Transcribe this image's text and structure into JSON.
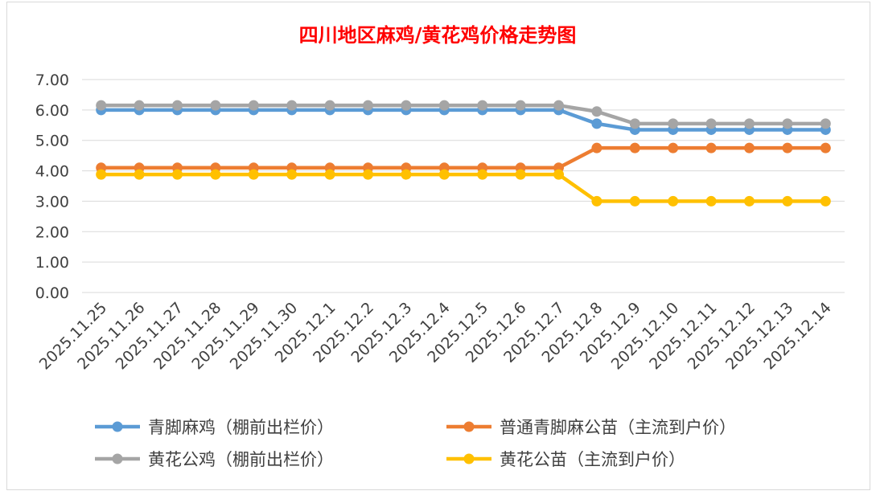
{
  "chart_data": {
    "type": "line",
    "title": "四川地区麻鸡/黄花鸡价格走势图",
    "xlabel": "",
    "ylabel": "",
    "ylim": [
      0,
      7
    ],
    "yticks": [
      "0.00",
      "1.00",
      "2.00",
      "3.00",
      "4.00",
      "5.00",
      "6.00",
      "7.00"
    ],
    "grid": true,
    "legend_position": "bottom",
    "categories": [
      "2025.11.25",
      "2025.11.26",
      "2025.11.27",
      "2025.11.28",
      "2025.11.29",
      "2025.11.30",
      "2025.12.1",
      "2025.12.2",
      "2025.12.3",
      "2025.12.4",
      "2025.12.5",
      "2025.12.6",
      "2025.12.7",
      "2025.12.8",
      "2025.12.9",
      "2025.12.10",
      "2025.12.11",
      "2025.12.12",
      "2025.12.13",
      "2025.12.14"
    ],
    "series": [
      {
        "name": "青脚麻鸡（棚前出栏价）",
        "color": "#5b9bd5",
        "values": [
          6.0,
          6.0,
          6.0,
          6.0,
          6.0,
          6.0,
          6.0,
          6.0,
          6.0,
          6.0,
          6.0,
          6.0,
          6.0,
          5.55,
          5.35,
          5.35,
          5.35,
          5.35,
          5.35,
          5.35
        ]
      },
      {
        "name": "普通青脚麻公苗（主流到户价）",
        "color": "#ed7d31",
        "values": [
          4.1,
          4.1,
          4.1,
          4.1,
          4.1,
          4.1,
          4.1,
          4.1,
          4.1,
          4.1,
          4.1,
          4.1,
          4.1,
          4.75,
          4.75,
          4.75,
          4.75,
          4.75,
          4.75,
          4.75
        ]
      },
      {
        "name": "黄花公鸡（棚前出栏价）",
        "color": "#a5a5a5",
        "values": [
          6.15,
          6.15,
          6.15,
          6.15,
          6.15,
          6.15,
          6.15,
          6.15,
          6.15,
          6.15,
          6.15,
          6.15,
          6.15,
          5.95,
          5.55,
          5.55,
          5.55,
          5.55,
          5.55,
          5.55
        ]
      },
      {
        "name": "黄花公苗（主流到户价）",
        "color": "#ffc000",
        "values": [
          3.88,
          3.88,
          3.88,
          3.88,
          3.88,
          3.88,
          3.88,
          3.88,
          3.88,
          3.88,
          3.88,
          3.88,
          3.88,
          3.0,
          3.0,
          3.0,
          3.0,
          3.0,
          3.0,
          3.0
        ]
      }
    ]
  }
}
